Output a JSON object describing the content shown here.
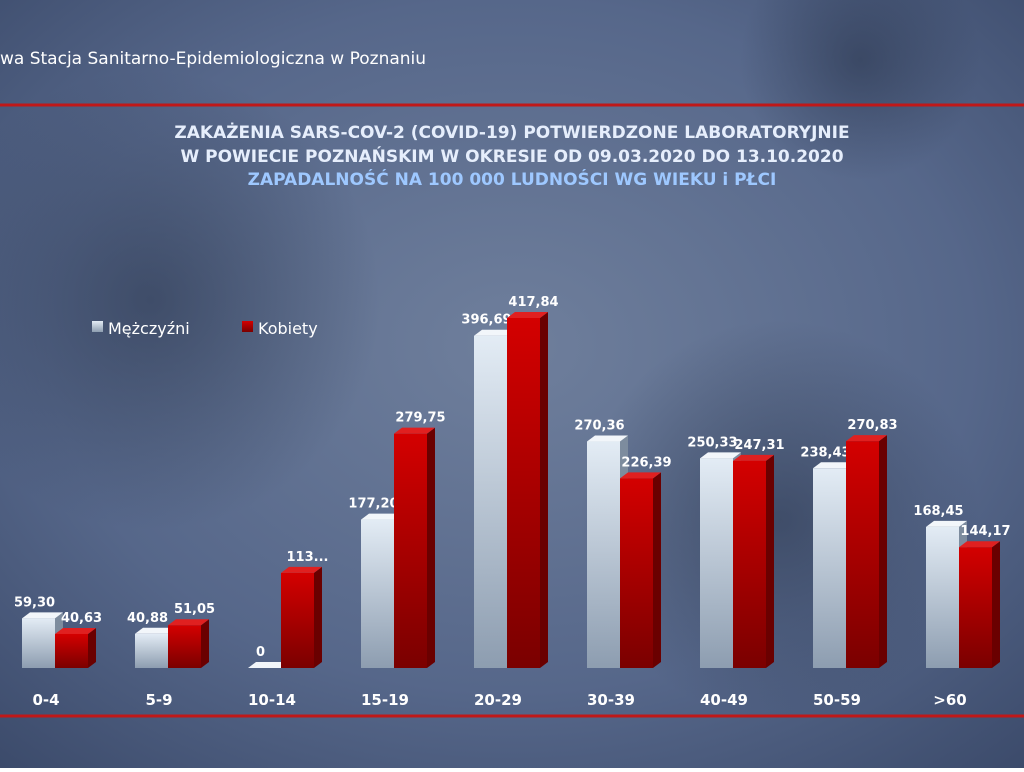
{
  "chart_data": {
    "type": "bar3d",
    "header": "wa Stacja Sanitarno-Epidemiologiczna w Poznaniu",
    "title": [
      "ZAKAŻENIA SARS-COV-2 (COVID-19) POTWIERDZONE LABORATORYJNIE",
      "W POWIECIE POZNAŃSKIM W OKRESIE OD 09.03.2020 DO 13.10.2020"
    ],
    "subtitle": "ZAPADALNOŚĆ NA 100 000 LUDNOŚCI WG WIEKU i PŁCI",
    "categories": [
      "0-4",
      "5-9",
      "10-14",
      "15-19",
      "20-29",
      "30-39",
      "40-49",
      "50-59",
      ">60"
    ],
    "series": [
      {
        "name": "Mężczyźni",
        "color": "#c9d6e2",
        "values": [
          59.3,
          40.88,
          0,
          177.2,
          396.69,
          270.36,
          250.33,
          238.43,
          168.45
        ],
        "value_labels": [
          "59,30",
          "40,88",
          "0",
          "177,20",
          "396,69",
          "270,36",
          "250,33",
          "238,43",
          "168,45"
        ]
      },
      {
        "name": "Kobiety",
        "color": "#c00000",
        "values": [
          40.63,
          51.05,
          113.5,
          279.75,
          417.84,
          226.39,
          247.31,
          270.83,
          144.17
        ],
        "value_labels": [
          "40,63",
          "51,05",
          "113...",
          "279,75",
          "417,84",
          "226,39",
          "247,31",
          "270,83",
          "144,17"
        ]
      }
    ],
    "legend": "top-left"
  }
}
